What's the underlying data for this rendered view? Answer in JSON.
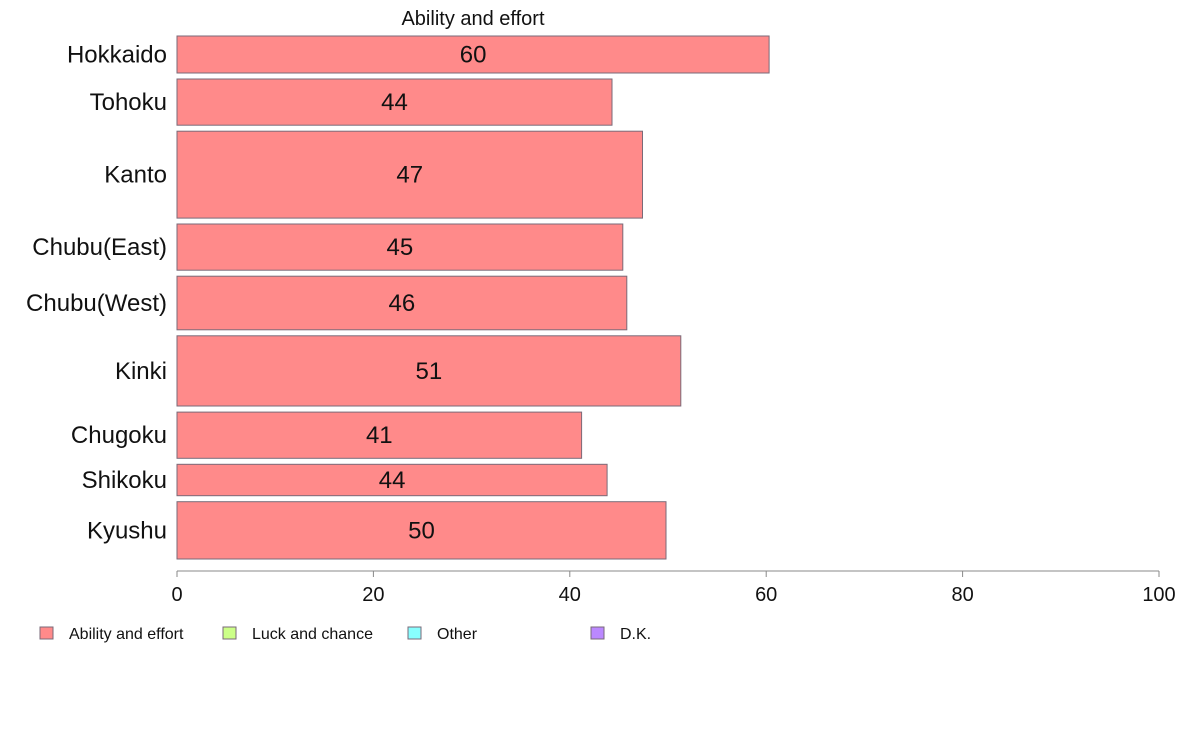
{
  "chart_data": {
    "type": "bar",
    "orientation": "horizontal",
    "title": "Ability and effort",
    "categories": [
      "Hokkaido",
      "Tohoku",
      "Kanto",
      "Chubu(East)",
      "Chubu(West)",
      "Kinki",
      "Chugoku",
      "Shikoku",
      "Kyushu"
    ],
    "series": [
      {
        "name": "Ability and effort",
        "color": "#ff8a8a",
        "values": [
          60.3,
          44.3,
          47.4,
          45.4,
          45.8,
          51.3,
          41.2,
          43.8,
          49.8
        ],
        "labels": [
          "60",
          "44",
          "47",
          "45",
          "46",
          "51",
          "41",
          "44",
          "50"
        ]
      }
    ],
    "bar_widths_relative": [
      1.0,
      1.25,
      2.35,
      1.25,
      1.45,
      1.9,
      1.25,
      0.85,
      1.55
    ],
    "xlim": [
      0,
      100
    ],
    "xticks": [
      0,
      20,
      40,
      60,
      80,
      100
    ],
    "xlabel": "",
    "ylabel": "",
    "grid": false,
    "legend": {
      "position": "bottom-left",
      "items": [
        {
          "label": "Ability and effort",
          "color": "#ff8a8a"
        },
        {
          "label": "Luck and chance",
          "color": "#ccff88"
        },
        {
          "label": "Other",
          "color": "#88ffff"
        },
        {
          "label": "D.K.",
          "color": "#bb88ff"
        }
      ]
    }
  }
}
